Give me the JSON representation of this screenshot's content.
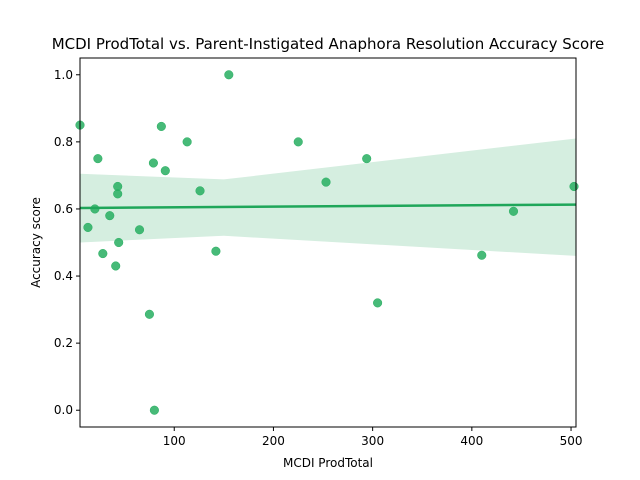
{
  "chart_data": {
    "type": "scatter",
    "title": "MCDI ProdTotal vs. Parent-Instigated Anaphora Resolution Accuracy Score",
    "xlabel": "MCDI ProdTotal",
    "ylabel": "Accuracy score",
    "xlim": [
      5,
      505
    ],
    "ylim": [
      -0.05,
      1.05
    ],
    "xticks": [
      100,
      200,
      300,
      400,
      500
    ],
    "yticks": [
      0.0,
      0.2,
      0.4,
      0.6,
      0.8,
      1.0
    ],
    "grid": false,
    "colors": {
      "points": "#27ae60",
      "regression": "#1fa65a",
      "band": "#d5eee0"
    },
    "points": [
      {
        "x": 5,
        "y": 0.85
      },
      {
        "x": 13,
        "y": 0.545
      },
      {
        "x": 20,
        "y": 0.6
      },
      {
        "x": 23,
        "y": 0.75
      },
      {
        "x": 28,
        "y": 0.467
      },
      {
        "x": 35,
        "y": 0.58
      },
      {
        "x": 41,
        "y": 0.43
      },
      {
        "x": 43,
        "y": 0.667
      },
      {
        "x": 43,
        "y": 0.645
      },
      {
        "x": 44,
        "y": 0.5
      },
      {
        "x": 65,
        "y": 0.538
      },
      {
        "x": 75,
        "y": 0.286
      },
      {
        "x": 79,
        "y": 0.737
      },
      {
        "x": 80,
        "y": 0.0
      },
      {
        "x": 87,
        "y": 0.846
      },
      {
        "x": 91,
        "y": 0.714
      },
      {
        "x": 113,
        "y": 0.8
      },
      {
        "x": 126,
        "y": 0.654
      },
      {
        "x": 142,
        "y": 0.474
      },
      {
        "x": 155,
        "y": 1.0
      },
      {
        "x": 225,
        "y": 0.8
      },
      {
        "x": 253,
        "y": 0.68
      },
      {
        "x": 294,
        "y": 0.75
      },
      {
        "x": 305,
        "y": 0.32
      },
      {
        "x": 410,
        "y": 0.462
      },
      {
        "x": 442,
        "y": 0.593
      },
      {
        "x": 503,
        "y": 0.667
      }
    ],
    "regression": {
      "x": [
        5,
        505
      ],
      "y": [
        0.603,
        0.613
      ]
    },
    "confidence_band": {
      "x": [
        5,
        150,
        505
      ],
      "upper": [
        0.705,
        0.688,
        0.81
      ],
      "lower": [
        0.5,
        0.52,
        0.46
      ]
    }
  }
}
